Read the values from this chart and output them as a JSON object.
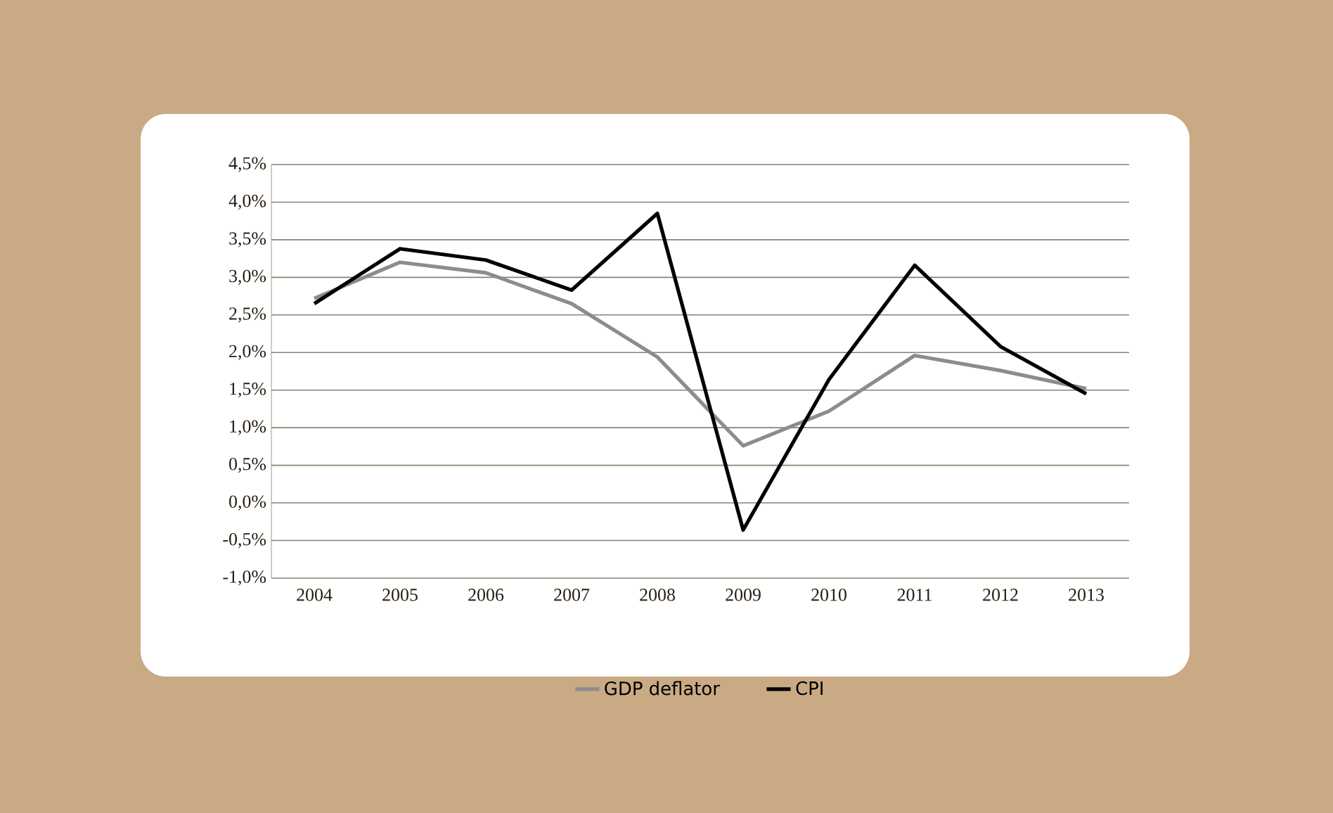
{
  "chart_data": {
    "type": "line",
    "categories": [
      "2004",
      "2005",
      "2006",
      "2007",
      "2008",
      "2009",
      "2010",
      "2011",
      "2012",
      "2013"
    ],
    "series": [
      {
        "name": "GDP deflator",
        "color": "#8c8c8c",
        "values": [
          2.72,
          3.2,
          3.06,
          2.65,
          1.94,
          0.76,
          1.22,
          1.96,
          1.76,
          1.52
        ]
      },
      {
        "name": "CPI",
        "color": "#000000",
        "values": [
          2.65,
          3.38,
          3.23,
          2.83,
          3.85,
          -0.36,
          1.64,
          3.16,
          2.08,
          1.45
        ]
      }
    ],
    "ylim": [
      -1.0,
      4.5
    ],
    "yticks": [
      {
        "value": -1.0,
        "label": "-1,0%"
      },
      {
        "value": -0.5,
        "label": "-0,5%"
      },
      {
        "value": 0,
        "label": "0,0%"
      },
      {
        "value": 0.5,
        "label": "0,5%"
      },
      {
        "value": 1.0,
        "label": "1,0%"
      },
      {
        "value": 1.5,
        "label": "1,5%"
      },
      {
        "value": 2.0,
        "label": "2,0%"
      },
      {
        "value": 2.5,
        "label": "2,5%"
      },
      {
        "value": 3.0,
        "label": "3,0%"
      },
      {
        "value": 3.5,
        "label": "3,5%"
      },
      {
        "value": 4.0,
        "label": "4,0%"
      },
      {
        "value": 4.5,
        "label": "4,5%"
      }
    ],
    "grid": "y",
    "legend": "bottom",
    "marker": "none",
    "line_style": "solid"
  }
}
